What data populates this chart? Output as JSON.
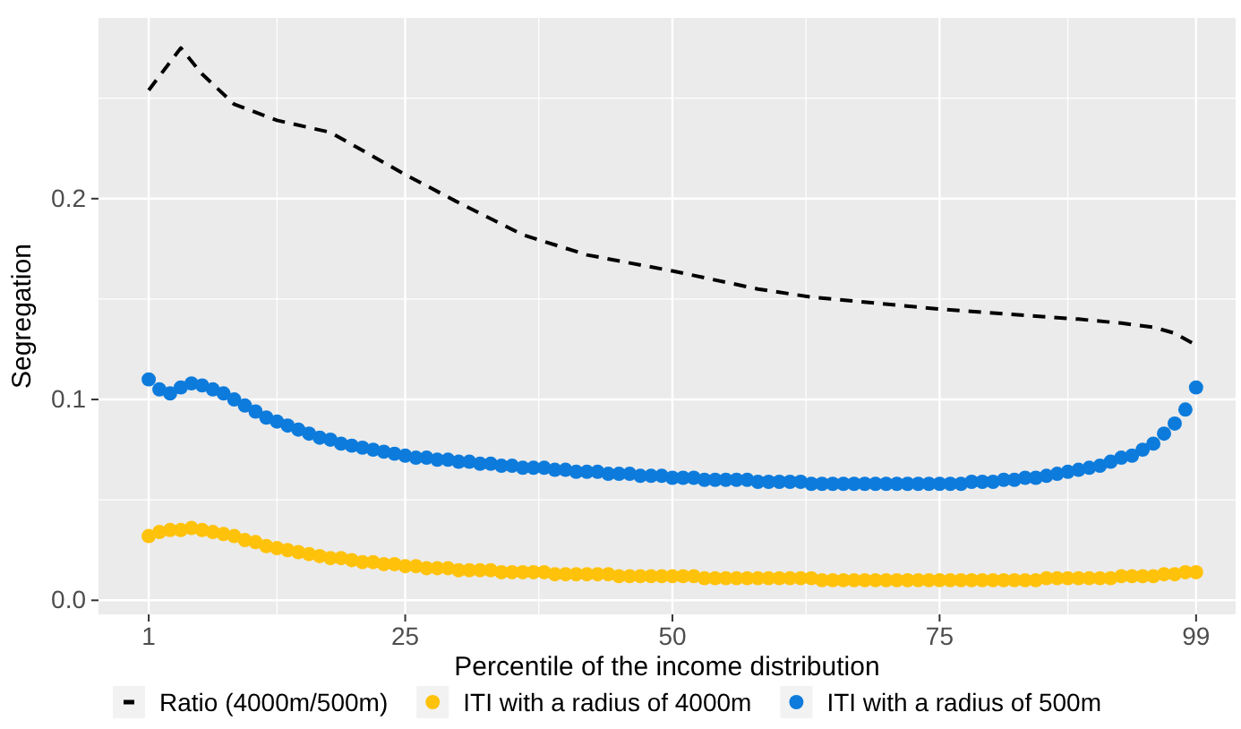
{
  "chart_data": {
    "type": "scatter",
    "xlabel": "Percentile of the income distribution",
    "ylabel": "Segregation",
    "x": [
      1,
      2,
      3,
      4,
      5,
      6,
      7,
      8,
      9,
      10,
      11,
      12,
      13,
      14,
      15,
      16,
      17,
      18,
      19,
      20,
      21,
      22,
      23,
      24,
      25,
      26,
      27,
      28,
      29,
      30,
      31,
      32,
      33,
      34,
      35,
      36,
      37,
      38,
      39,
      40,
      41,
      42,
      43,
      44,
      45,
      46,
      47,
      48,
      49,
      50,
      51,
      52,
      53,
      54,
      55,
      56,
      57,
      58,
      59,
      60,
      61,
      62,
      63,
      64,
      65,
      66,
      67,
      68,
      69,
      70,
      71,
      72,
      73,
      74,
      75,
      76,
      77,
      78,
      79,
      80,
      81,
      82,
      83,
      84,
      85,
      86,
      87,
      88,
      89,
      90,
      91,
      92,
      93,
      94,
      95,
      96,
      97,
      98,
      99
    ],
    "xlim": [
      -3.7,
      102.7
    ],
    "xticks": [
      1,
      25,
      50,
      75,
      99
    ],
    "ylim": [
      -0.007,
      0.29
    ],
    "yticks": [
      {
        "value": 0,
        "label": "0.0"
      },
      0.1,
      0.2
    ],
    "grid": true,
    "legend": "bottom",
    "series": [
      {
        "name": "Ratio (4000m/500m)",
        "type": "line",
        "line_style": "dashed",
        "color": "#000000",
        "x": [
          1,
          4,
          6,
          9,
          13,
          18,
          25,
          30,
          36,
          42,
          50,
          58,
          63,
          75,
          88,
          92,
          95,
          97,
          99
        ],
        "values": [
          0.254,
          0.275,
          0.262,
          0.247,
          0.239,
          0.233,
          0.212,
          0.198,
          0.182,
          0.172,
          0.164,
          0.155,
          0.151,
          0.145,
          0.14,
          0.138,
          0.136,
          0.133,
          0.127
        ]
      },
      {
        "name": "ITI with a radius of 4000m",
        "marker": "circle",
        "color": "#ffc20a",
        "values": [
          0.032,
          0.034,
          0.035,
          0.035,
          0.036,
          0.035,
          0.034,
          0.033,
          0.032,
          0.03,
          0.029,
          0.027,
          0.026,
          0.025,
          0.024,
          0.023,
          0.022,
          0.021,
          0.021,
          0.02,
          0.019,
          0.019,
          0.018,
          0.018,
          0.017,
          0.017,
          0.016,
          0.016,
          0.016,
          0.015,
          0.015,
          0.015,
          0.015,
          0.014,
          0.014,
          0.014,
          0.014,
          0.014,
          0.013,
          0.013,
          0.013,
          0.013,
          0.013,
          0.013,
          0.012,
          0.012,
          0.012,
          0.012,
          0.012,
          0.012,
          0.012,
          0.012,
          0.011,
          0.011,
          0.011,
          0.011,
          0.011,
          0.011,
          0.011,
          0.011,
          0.011,
          0.011,
          0.011,
          0.01,
          0.01,
          0.01,
          0.01,
          0.01,
          0.01,
          0.01,
          0.01,
          0.01,
          0.01,
          0.01,
          0.01,
          0.01,
          0.01,
          0.01,
          0.01,
          0.01,
          0.01,
          0.01,
          0.01,
          0.01,
          0.011,
          0.011,
          0.011,
          0.011,
          0.011,
          0.011,
          0.011,
          0.012,
          0.012,
          0.012,
          0.012,
          0.013,
          0.013,
          0.014,
          0.014
        ]
      },
      {
        "name": "ITI with a radius of 500m",
        "marker": "circle",
        "color": "#0c7bdc",
        "values": [
          0.11,
          0.105,
          0.103,
          0.106,
          0.108,
          0.107,
          0.105,
          0.103,
          0.1,
          0.097,
          0.094,
          0.091,
          0.089,
          0.087,
          0.085,
          0.083,
          0.081,
          0.08,
          0.078,
          0.077,
          0.076,
          0.075,
          0.074,
          0.073,
          0.072,
          0.071,
          0.071,
          0.07,
          0.07,
          0.069,
          0.069,
          0.068,
          0.068,
          0.067,
          0.067,
          0.066,
          0.066,
          0.066,
          0.065,
          0.065,
          0.064,
          0.064,
          0.064,
          0.063,
          0.063,
          0.063,
          0.062,
          0.062,
          0.062,
          0.061,
          0.061,
          0.061,
          0.06,
          0.06,
          0.06,
          0.06,
          0.06,
          0.059,
          0.059,
          0.059,
          0.059,
          0.059,
          0.058,
          0.058,
          0.058,
          0.058,
          0.058,
          0.058,
          0.058,
          0.058,
          0.058,
          0.058,
          0.058,
          0.058,
          0.058,
          0.058,
          0.058,
          0.059,
          0.059,
          0.059,
          0.06,
          0.06,
          0.061,
          0.061,
          0.062,
          0.063,
          0.064,
          0.065,
          0.066,
          0.067,
          0.069,
          0.071,
          0.072,
          0.075,
          0.078,
          0.083,
          0.088,
          0.095,
          0.106
        ]
      }
    ]
  }
}
